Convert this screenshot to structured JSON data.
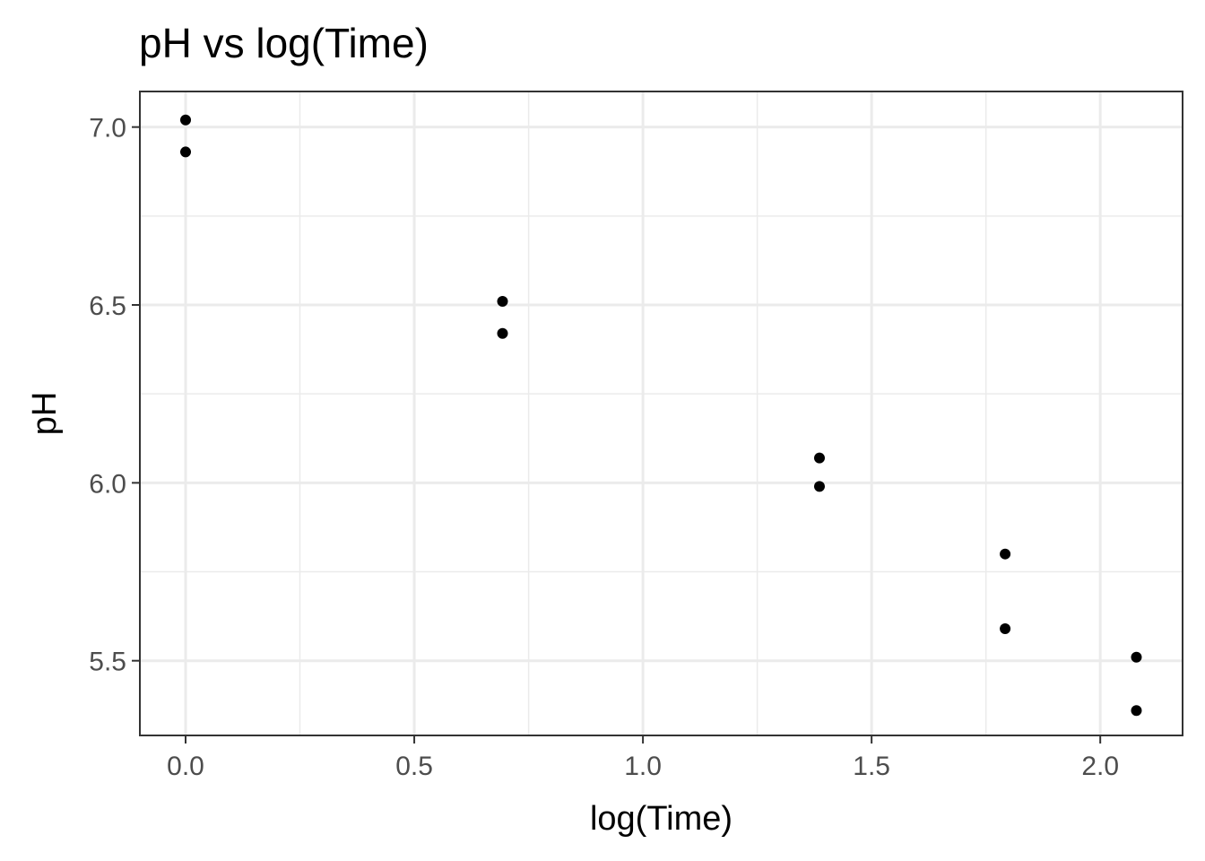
{
  "chart_data": {
    "type": "scatter",
    "title": "pH vs log(Time)",
    "xlabel": "log(Time)",
    "ylabel": "pH",
    "xlim": [
      -0.1,
      2.18
    ],
    "ylim": [
      5.29,
      7.1
    ],
    "x_ticks": [
      {
        "value": 0.0,
        "label": "0.0"
      },
      {
        "value": 0.5,
        "label": "0.5"
      },
      {
        "value": 1.0,
        "label": "1.0"
      },
      {
        "value": 1.5,
        "label": "1.5"
      },
      {
        "value": 2.0,
        "label": "2.0"
      }
    ],
    "y_ticks": [
      {
        "value": 5.5,
        "label": "5.5"
      },
      {
        "value": 6.0,
        "label": "6.0"
      },
      {
        "value": 6.5,
        "label": "6.5"
      },
      {
        "value": 7.0,
        "label": "7.0"
      }
    ],
    "x_minor_grid": [
      0.25,
      0.75,
      1.25,
      1.75
    ],
    "y_minor_grid": [
      5.75,
      6.25,
      6.75
    ],
    "grid": true,
    "legend": "none",
    "point_color": "#000000",
    "grid_color": "#ebebeb",
    "panel_border_color": "#333333",
    "points": [
      {
        "x": 0.0,
        "y": 7.02
      },
      {
        "x": 0.0,
        "y": 6.93
      },
      {
        "x": 0.693,
        "y": 6.51
      },
      {
        "x": 0.693,
        "y": 6.42
      },
      {
        "x": 1.386,
        "y": 6.07
      },
      {
        "x": 1.386,
        "y": 5.99
      },
      {
        "x": 1.792,
        "y": 5.8
      },
      {
        "x": 1.792,
        "y": 5.59
      },
      {
        "x": 2.079,
        "y": 5.51
      },
      {
        "x": 2.079,
        "y": 5.36
      }
    ]
  }
}
